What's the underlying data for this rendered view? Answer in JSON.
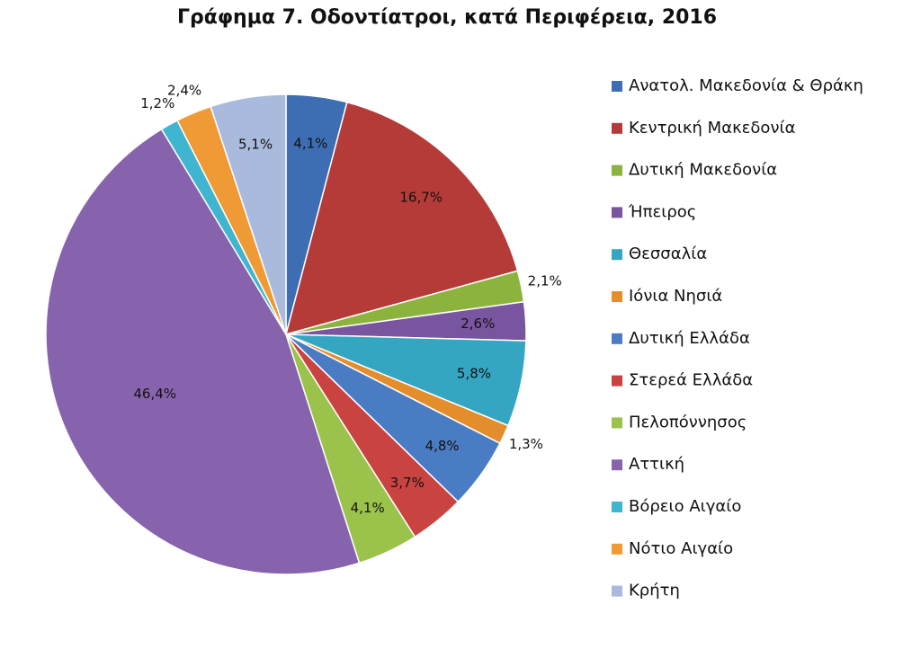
{
  "chart_data": {
    "type": "pie",
    "title": "Γράφημα 7. Οδοντίατροι, κατά Περιφέρεια, 2016",
    "categories": [
      "Ανατολ. Μακεδονία & Θράκη",
      "Κεντρική Μακεδονία",
      "Δυτική Μακεδονία",
      "Ήπειρος",
      "Θεσσαλία",
      "Ιόνια Νησιά",
      "Δυτική Ελλάδα",
      "Στερεά Ελλάδα",
      "Πελοπόννησος",
      "Αττική",
      "Βόρειο Αιγαίο",
      "Νότιο Αιγαίο",
      "Κρήτη"
    ],
    "values": [
      4.1,
      16.7,
      2.1,
      2.6,
      5.8,
      1.3,
      4.8,
      3.7,
      4.1,
      46.4,
      1.2,
      2.4,
      5.1
    ],
    "value_labels": [
      "4,1%",
      "16,7%",
      "2,1%",
      "2,6%",
      "5,8%",
      "1,3%",
      "4,8%",
      "3,7%",
      "4,1%",
      "46,4%",
      "1,2%",
      "2,4%",
      "5,1%"
    ],
    "colors": [
      "#3d6db3",
      "#b53b38",
      "#8cb33d",
      "#7a559f",
      "#35a6c2",
      "#e48d2d",
      "#4a7cc4",
      "#c94440",
      "#9bc24a",
      "#8863ad",
      "#3fb5d0",
      "#f09a35",
      "#a9badc"
    ]
  }
}
